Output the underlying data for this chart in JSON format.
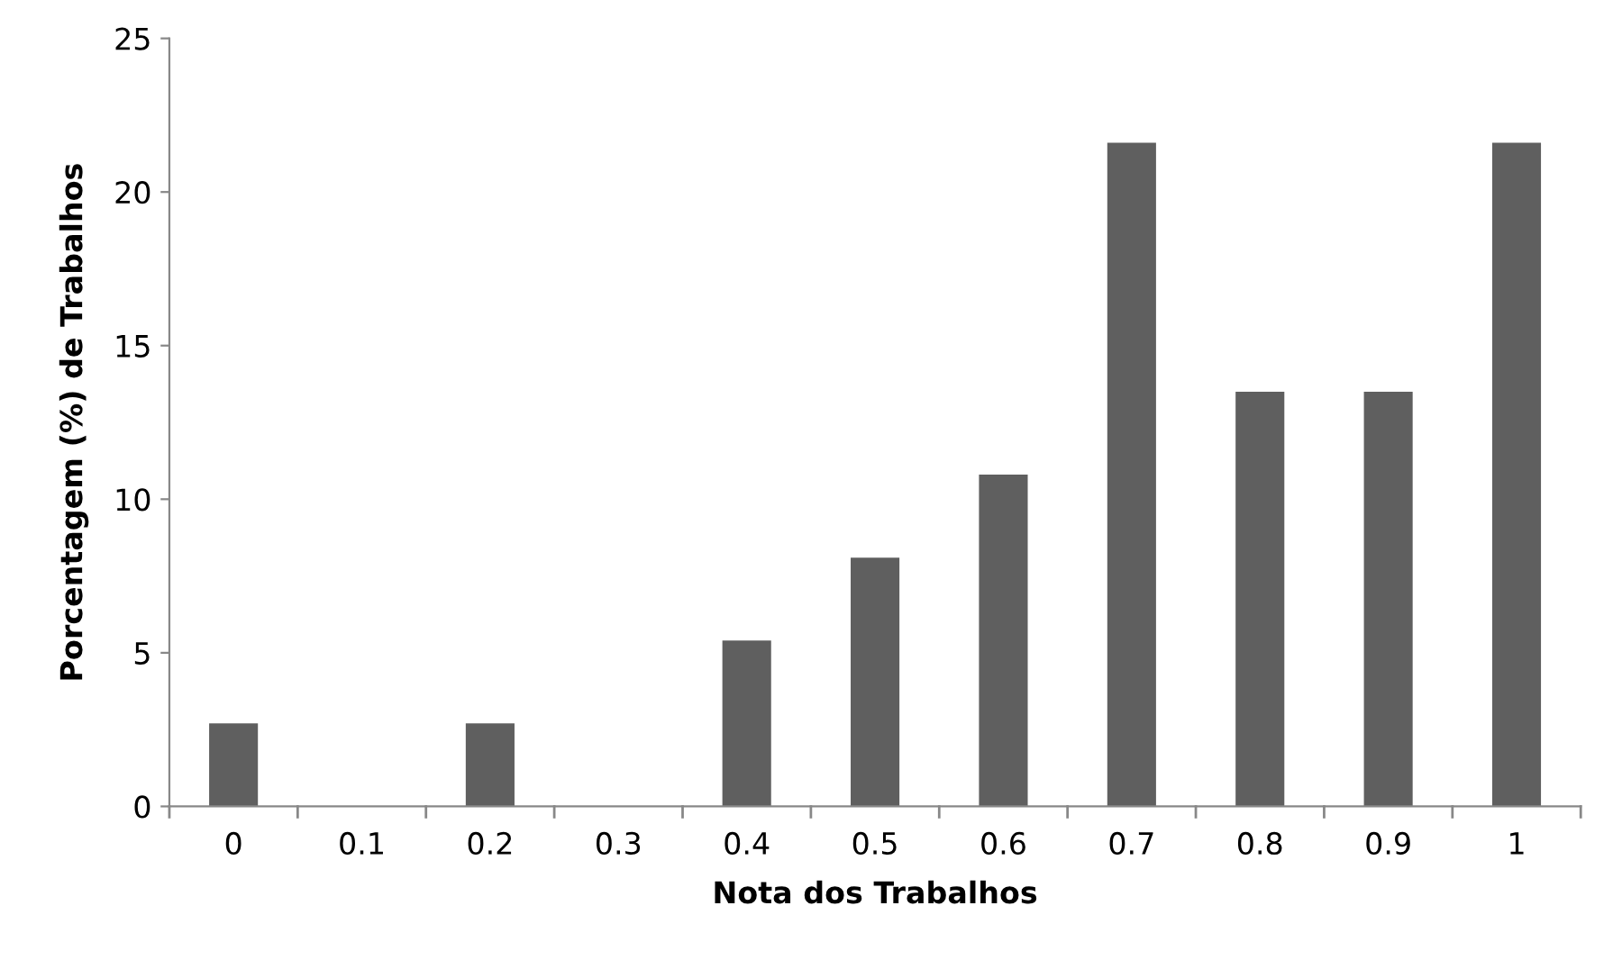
{
  "chart_data": {
    "type": "bar",
    "xlabel": "Nota dos Trabalhos",
    "ylabel": "Porcentagem (%) de Trabalhos",
    "categories": [
      "0",
      "0.1",
      "0.2",
      "0.3",
      "0.4",
      "0.5",
      "0.6",
      "0.7",
      "0.8",
      "0.9",
      "1"
    ],
    "values": [
      2.7,
      0,
      2.7,
      0,
      5.4,
      8.1,
      10.8,
      21.6,
      13.5,
      13.5,
      21.6
    ],
    "color": "#5f5f5f",
    "ylim": [
      0,
      25
    ],
    "yticks": [
      0,
      5,
      10,
      15,
      20,
      25
    ],
    "grid": false,
    "legend": false
  }
}
